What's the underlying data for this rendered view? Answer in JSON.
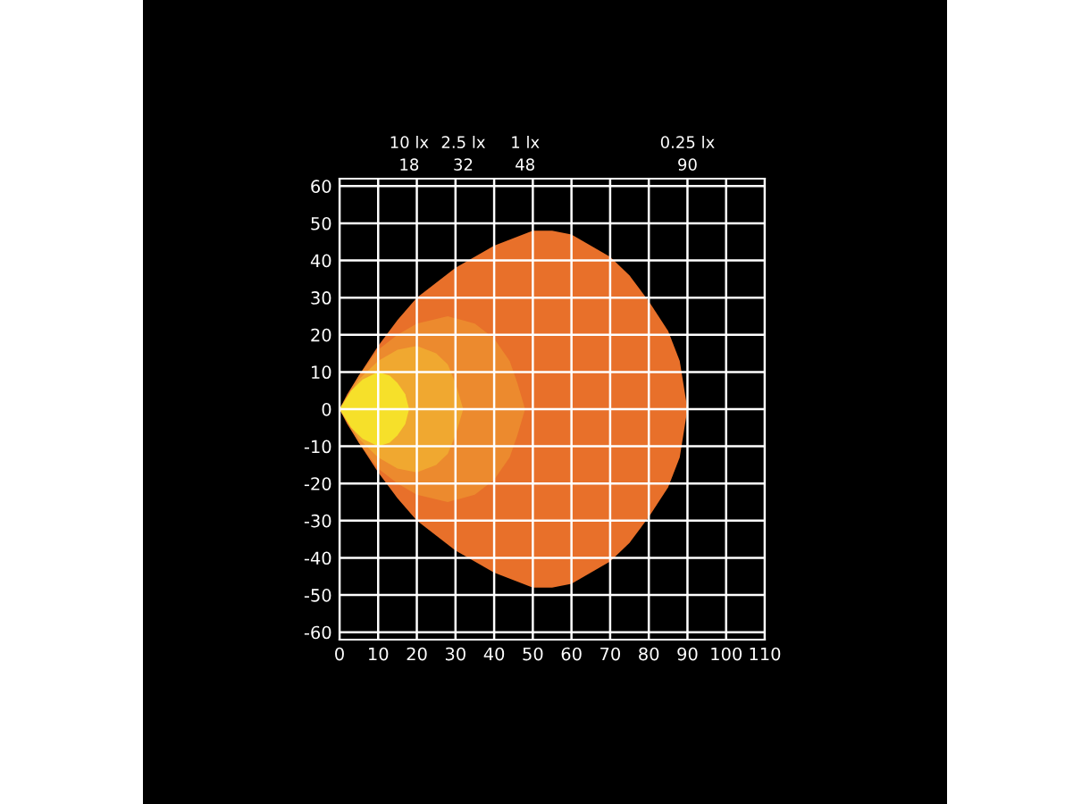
{
  "chart_data": {
    "type": "area",
    "series": [
      {
        "color": "#e8702a",
        "x": [
          0,
          2,
          5,
          10,
          15,
          20,
          30,
          40,
          50,
          55,
          60,
          70,
          75,
          80,
          85,
          88,
          90,
          88,
          85,
          80,
          75,
          70,
          60,
          55,
          50,
          40,
          30,
          20,
          15,
          10,
          5,
          2,
          0
        ],
        "values": [
          0,
          4,
          9,
          17,
          24,
          30,
          38,
          44,
          48,
          48,
          47,
          41,
          36,
          29,
          21,
          13,
          0,
          -13,
          -21,
          -29,
          -36,
          -41,
          -47,
          -48,
          -48,
          -44,
          -38,
          -30,
          -24,
          -17,
          -9,
          -4,
          0
        ]
      },
      {
        "color": "#ec8a2e",
        "x": [
          0,
          5,
          10,
          15,
          20,
          28,
          35,
          40,
          44,
          46,
          48,
          46,
          44,
          40,
          35,
          28,
          20,
          15,
          10,
          5,
          0
        ],
        "values": [
          0,
          9,
          16,
          20,
          23,
          25,
          23,
          19,
          13,
          7,
          0,
          -7,
          -13,
          -19,
          -23,
          -25,
          -23,
          -20,
          -16,
          -9,
          0
        ]
      },
      {
        "color": "#f0a830",
        "x": [
          0,
          5,
          10,
          15,
          20,
          25,
          28,
          30,
          32,
          30,
          28,
          25,
          20,
          15,
          10,
          5,
          0
        ],
        "values": [
          0,
          8,
          13,
          16,
          17,
          15,
          12,
          7,
          0,
          -7,
          -12,
          -15,
          -17,
          -16,
          -13,
          -8,
          0
        ]
      },
      {
        "color": "#f6e02a",
        "x": [
          0,
          3,
          6,
          10,
          13,
          15,
          17,
          18,
          17,
          15,
          13,
          10,
          6,
          3,
          0
        ],
        "values": [
          0,
          5,
          8,
          10,
          9,
          7,
          4,
          0,
          -4,
          -7,
          -9,
          -10,
          -8,
          -5,
          0
        ]
      }
    ],
    "xlim": [
      0,
      110
    ],
    "ylim": [
      -62,
      62
    ],
    "xticks": [
      0,
      10,
      20,
      30,
      40,
      50,
      60,
      70,
      80,
      90,
      100,
      110
    ],
    "yticks": [
      -60,
      -50,
      -40,
      -30,
      -20,
      -10,
      0,
      10,
      20,
      30,
      40,
      50,
      60
    ],
    "x2lim": [
      0,
      110
    ],
    "x2ticks": [
      18,
      32,
      48,
      90
    ],
    "annotations": [
      "10 lx",
      "2.5 lx",
      "1 lx",
      "0.25 lx"
    ],
    "grid": true
  }
}
